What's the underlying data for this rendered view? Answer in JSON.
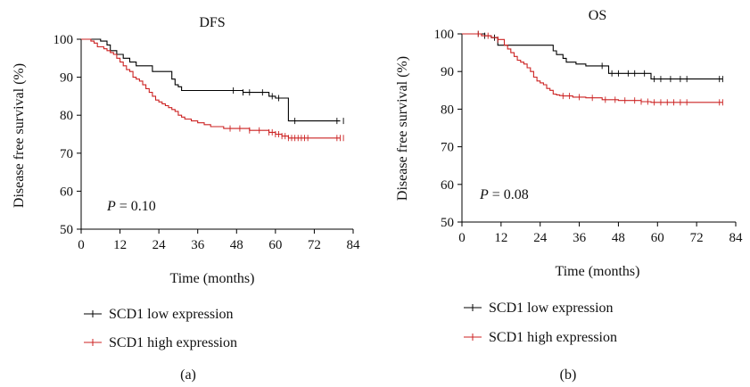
{
  "chart_data": [
    {
      "type": "line",
      "title": "DFS",
      "panel_label": "(a)",
      "xlabel": "Time (months)",
      "ylabel": "Disease free survival (%)",
      "xlim": [
        0,
        84
      ],
      "ylim": [
        50,
        100
      ],
      "xticks": [
        "0",
        "12",
        "24",
        "36",
        "48",
        "60",
        "72",
        "84"
      ],
      "yticks": [
        "50",
        "60",
        "70",
        "80",
        "90",
        "100"
      ],
      "annotation": {
        "italic": "P",
        "text": " = 0.10"
      },
      "step": true,
      "grid": false,
      "legend_position": "below",
      "series": [
        {
          "name": "SCD1 low expression",
          "color": "#000000",
          "x": [
            0,
            2,
            6,
            8,
            9,
            11,
            13,
            15,
            17,
            22,
            28,
            29,
            30,
            31,
            35,
            50,
            58,
            60,
            64,
            80
          ],
          "y": [
            100,
            100,
            99.5,
            98.5,
            97,
            96,
            95,
            94,
            93,
            91.5,
            89.5,
            88,
            87.5,
            86.5,
            86.5,
            86,
            85,
            84.5,
            78.5,
            78.5
          ],
          "censor_x": [
            47,
            50,
            52,
            56,
            59,
            61,
            66,
            79,
            81
          ]
        },
        {
          "name": "SCD1 high expression",
          "color": "#cc2222",
          "x": [
            0,
            3,
            4,
            5,
            7,
            8,
            9,
            10,
            11,
            12,
            13,
            14,
            15,
            16,
            17,
            18,
            19,
            20,
            21,
            22,
            23,
            24,
            25,
            26,
            27,
            28,
            29,
            30,
            31,
            32,
            34,
            36,
            38,
            40,
            44,
            48,
            52,
            56,
            58,
            60,
            62,
            64,
            66,
            80
          ],
          "y": [
            100,
            99.5,
            99,
            98,
            97.5,
            97,
            96.5,
            96,
            95,
            94,
            93,
            92,
            91.5,
            90,
            89.5,
            89,
            88,
            87,
            86,
            85,
            84,
            83.5,
            83,
            82.5,
            82,
            81.5,
            81,
            80,
            79.5,
            79,
            78.5,
            78,
            77.5,
            77,
            76.5,
            76.5,
            76,
            76,
            75.5,
            75,
            74.5,
            74,
            74,
            74
          ],
          "censor_x": [
            46,
            49,
            52,
            55,
            58,
            59,
            60,
            61,
            62,
            63,
            64,
            65,
            66,
            67,
            68,
            69,
            70,
            79,
            80,
            81
          ]
        }
      ]
    },
    {
      "type": "line",
      "title": "OS",
      "panel_label": "(b)",
      "xlabel": "Time (months)",
      "ylabel": "Disease free survival (%)",
      "xlim": [
        0,
        84
      ],
      "ylim": [
        50,
        100
      ],
      "xticks": [
        "0",
        "12",
        "24",
        "36",
        "48",
        "60",
        "72",
        "84"
      ],
      "yticks": [
        "50",
        "60",
        "70",
        "80",
        "90",
        "100"
      ],
      "annotation": {
        "italic": "P",
        "text": " = 0.08"
      },
      "step": true,
      "grid": false,
      "legend_position": "below",
      "series": [
        {
          "name": "SCD1 low expression",
          "color": "#000000",
          "x": [
            0,
            4,
            7,
            9,
            11,
            28,
            29,
            31,
            32,
            35,
            38,
            45,
            55,
            58,
            80
          ],
          "y": [
            100,
            100,
            99.5,
            99,
            97,
            95.5,
            94.5,
            93.5,
            92.5,
            92,
            91.5,
            89.5,
            89.5,
            88,
            88
          ],
          "censor_x": [
            5,
            7,
            10,
            43,
            46,
            48,
            51,
            53,
            56,
            59,
            61,
            64,
            67,
            69,
            79,
            80
          ]
        },
        {
          "name": "SCD1 high expression",
          "color": "#cc2222",
          "x": [
            0,
            6,
            9,
            11,
            13,
            14,
            15,
            16,
            17,
            18,
            19,
            20,
            21,
            22,
            23,
            24,
            25,
            26,
            27,
            28,
            29,
            30,
            31,
            34,
            38,
            43,
            48,
            55,
            58,
            80
          ],
          "y": [
            100,
            99.5,
            99,
            98.5,
            97,
            96,
            95,
            94,
            93,
            92.5,
            92,
            91,
            90,
            88.5,
            87.5,
            87,
            86.5,
            85.5,
            85,
            84,
            83.8,
            83.6,
            83.5,
            83.2,
            83,
            82.5,
            82.3,
            82,
            81.8,
            81.8
          ],
          "censor_x": [
            5,
            8,
            11,
            31,
            33,
            36,
            40,
            44,
            47,
            50,
            53,
            55,
            57,
            59,
            61,
            63,
            65,
            67,
            69,
            79,
            80
          ]
        }
      ]
    }
  ]
}
